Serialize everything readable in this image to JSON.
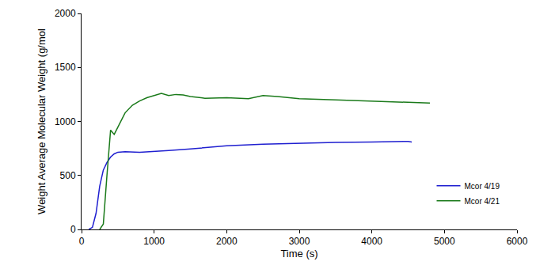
{
  "chart_data": {
    "type": "line",
    "x_label": "Time (s)",
    "y_label": "Weight Average Molecular Weight (g/mol",
    "xlim": [
      0,
      6000
    ],
    "xticks": [
      0,
      1000,
      2000,
      3000,
      4000,
      5000,
      6000
    ],
    "ylim": [
      0,
      2000
    ],
    "yticks": [
      0,
      500,
      1000,
      1500,
      2000
    ],
    "grid": false,
    "legend": "lower right",
    "series": [
      {
        "name": "Mcor 4/19",
        "color": "#1f1fd0",
        "line_style": "solid",
        "x": [
          100,
          150,
          200,
          250,
          300,
          350,
          400,
          450,
          500,
          600,
          800,
          1000,
          1200,
          1500,
          1800,
          2000,
          2500,
          3000,
          3500,
          4000,
          4500,
          4550
        ],
        "values": [
          0,
          20,
          150,
          400,
          550,
          620,
          670,
          700,
          715,
          720,
          715,
          720,
          730,
          745,
          765,
          775,
          790,
          800,
          805,
          810,
          815,
          810
        ]
      },
      {
        "name": "Mcor 4/21",
        "color": "#1a7a1a",
        "line_style": "solid",
        "x": [
          250,
          300,
          350,
          400,
          450,
          500,
          600,
          700,
          800,
          900,
          1000,
          1100,
          1200,
          1300,
          1400,
          1500,
          1700,
          2000,
          2300,
          2500,
          2700,
          3000,
          3500,
          4000,
          4500,
          4800
        ],
        "values": [
          0,
          50,
          500,
          920,
          880,
          950,
          1080,
          1150,
          1190,
          1220,
          1240,
          1260,
          1240,
          1250,
          1245,
          1230,
          1215,
          1220,
          1210,
          1240,
          1230,
          1210,
          1200,
          1190,
          1180,
          1170
        ]
      }
    ]
  }
}
